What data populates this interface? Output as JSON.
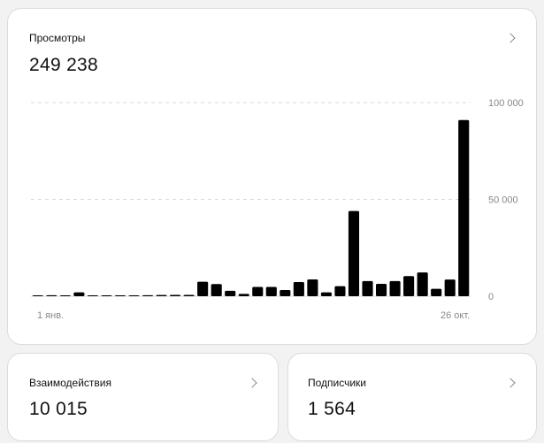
{
  "views": {
    "title": "Просмотры",
    "value": "249 238",
    "chart_data": {
      "type": "bar",
      "y_ticks": [
        "100 000",
        "50 000",
        "0"
      ],
      "x_ticks": [
        "1 янв.",
        "26 окт."
      ],
      "ylim": [
        0,
        100000
      ],
      "grid": true,
      "values": [
        300,
        500,
        300,
        2000,
        200,
        300,
        400,
        300,
        500,
        600,
        700,
        700,
        7500,
        6300,
        2800,
        1200,
        4800,
        4800,
        3200,
        7300,
        8700,
        2000,
        5200,
        44000,
        7800,
        6400,
        7800,
        10400,
        12300,
        3800,
        8600,
        91000
      ]
    }
  },
  "interactions": {
    "title": "Взаимодействия",
    "value": "10 015"
  },
  "subscribers": {
    "title": "Подписчики",
    "value": "1 564"
  },
  "colors": {
    "bar": "#000000",
    "grid": "#d9d9d9",
    "axis_text": "#888888"
  }
}
